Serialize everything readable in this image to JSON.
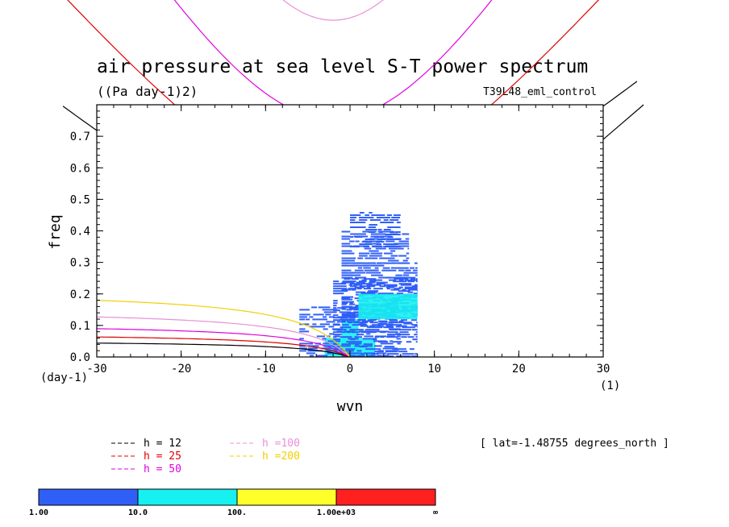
{
  "chart_data": {
    "type": "heatmap",
    "title": "air pressure at sea level S-T power spectrum",
    "units": "((Pa day-1)2)",
    "run_label": "T39L48_eml_control",
    "xlabel": "wvn",
    "ylabel": "freq",
    "x_unit_label": "(1)",
    "y_unit_label": "(day-1)",
    "xlim": [
      -30,
      30
    ],
    "ylim": [
      0.0,
      0.8
    ],
    "x_ticks": [
      "-30",
      "-20",
      "-10",
      "0",
      "10",
      "20",
      "30"
    ],
    "y_ticks": [
      "0.0",
      "0.1",
      "0.2",
      "0.3",
      "0.4",
      "0.5",
      "0.6",
      "0.7"
    ],
    "location_note": "[ lat=-1.48755 degrees_north ]",
    "colorbar": {
      "levels": [
        "1.00",
        "10.0",
        "100.",
        "1.00e+03",
        "∞"
      ],
      "colors": [
        "#2f5ff7",
        "#16f0f0",
        "#ffff2a",
        "#ff2020"
      ]
    },
    "dispersion_curves": [
      {
        "name": "h = 12",
        "color": "#000000",
        "equivalent_depth_m": 12
      },
      {
        "name": "h = 25",
        "color": "#e00000",
        "equivalent_depth_m": 25
      },
      {
        "name": "h = 50",
        "color": "#e000e0",
        "equivalent_depth_m": 50
      },
      {
        "name": "h =100",
        "color": "#e890d8",
        "equivalent_depth_m": 100
      },
      {
        "name": "h =200",
        "color": "#f0d000",
        "equivalent_depth_m": 200
      }
    ],
    "spectral_blocks": [
      {
        "x": [
          -1,
          1
        ],
        "y": [
          0.0,
          0.12
        ],
        "level": 2
      },
      {
        "x": [
          -0.5,
          0.5
        ],
        "y": [
          0.0,
          0.06
        ],
        "level": 3
      },
      {
        "x": [
          -0.3,
          0.3
        ],
        "y": [
          0.0,
          0.02
        ],
        "level": 4
      },
      {
        "x": [
          -3,
          3
        ],
        "y": [
          0.0,
          0.06
        ],
        "level": 2
      },
      {
        "x": [
          -6,
          6
        ],
        "y": [
          0.0,
          0.16
        ],
        "level": 1
      },
      {
        "x": [
          -2,
          8
        ],
        "y": [
          0.0,
          0.25
        ],
        "level": 1
      },
      {
        "x": [
          -1,
          8
        ],
        "y": [
          0.1,
          0.3
        ],
        "level": 1
      },
      {
        "x": [
          -1,
          7
        ],
        "y": [
          0.25,
          0.4
        ],
        "level": 1
      },
      {
        "x": [
          0,
          6
        ],
        "y": [
          0.35,
          0.46
        ],
        "level": 1
      },
      {
        "x": [
          1,
          8
        ],
        "y": [
          0.12,
          0.2
        ],
        "level": 2
      }
    ]
  }
}
